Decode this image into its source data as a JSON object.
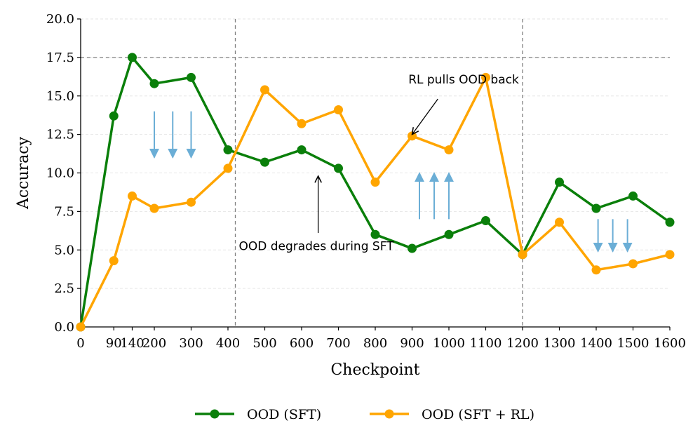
{
  "chart_data": {
    "type": "line",
    "xlabel": "Checkpoint",
    "ylabel": "Accuracy",
    "x": [
      0,
      90,
      140,
      200,
      300,
      400,
      500,
      600,
      700,
      800,
      900,
      1000,
      1100,
      1200,
      1300,
      1400,
      1500,
      1600
    ],
    "x_tick_labels": [
      "0",
      "90",
      "140",
      "200",
      "300",
      "400",
      "500",
      "600",
      "700",
      "800",
      "900",
      "1000",
      "1100",
      "1200",
      "1300",
      "1400",
      "1500",
      "1600"
    ],
    "ylim": [
      0,
      20
    ],
    "y_ticks": [
      0,
      2.5,
      5,
      7.5,
      10,
      12.5,
      15,
      17.5,
      20
    ],
    "y_tick_labels": [
      "0.0",
      "2.5",
      "5.0",
      "7.5",
      "10.0",
      "12.5",
      "15.0",
      "17.5",
      "20.0"
    ],
    "series": [
      {
        "name": "OOD (SFT)",
        "color": "#0a7f0a",
        "values": [
          0.0,
          13.7,
          17.5,
          15.8,
          16.2,
          11.5,
          10.7,
          11.5,
          10.3,
          6.0,
          5.1,
          6.0,
          6.9,
          4.7,
          9.4,
          7.7,
          8.5,
          6.8
        ]
      },
      {
        "name": "OOD (SFT + RL)",
        "color": "#ffa500",
        "values": [
          0.0,
          4.3,
          8.5,
          7.7,
          8.1,
          10.3,
          15.4,
          13.2,
          14.1,
          9.4,
          12.4,
          11.5,
          16.2,
          4.7,
          6.8,
          3.7,
          4.1,
          4.7
        ]
      }
    ],
    "reference_lines": {
      "horizontal_y": 17.5,
      "vertical_x_positions": [
        420,
        1200
      ]
    },
    "arrow_groups": [
      {
        "direction": "down",
        "x_positions": [
          200,
          250,
          300
        ],
        "y_from": 14.0,
        "y_to": 11.0
      },
      {
        "direction": "up",
        "x_positions": [
          920,
          960,
          1000
        ],
        "y_from": 7.0,
        "y_to": 10.0
      },
      {
        "direction": "down",
        "x_positions": [
          1405,
          1445,
          1485
        ],
        "y_from": 7.0,
        "y_to": 4.9
      }
    ],
    "annotations": [
      {
        "text": "RL pulls OOD back",
        "text_at": [
          1040,
          15.8
        ],
        "arrow_from": [
          970,
          14.8
        ],
        "arrow_to": [
          900,
          12.5
        ]
      },
      {
        "text": "OOD degrades during SFT",
        "text_at": [
          640,
          5.0
        ],
        "arrow_from": [
          645,
          6.1
        ],
        "arrow_to": [
          645,
          9.8
        ]
      }
    ],
    "colors": {
      "arrow": "#6baed6",
      "ref_line": "#808080",
      "grid": "#e6e6e6"
    },
    "legend_position": "bottom-center"
  }
}
